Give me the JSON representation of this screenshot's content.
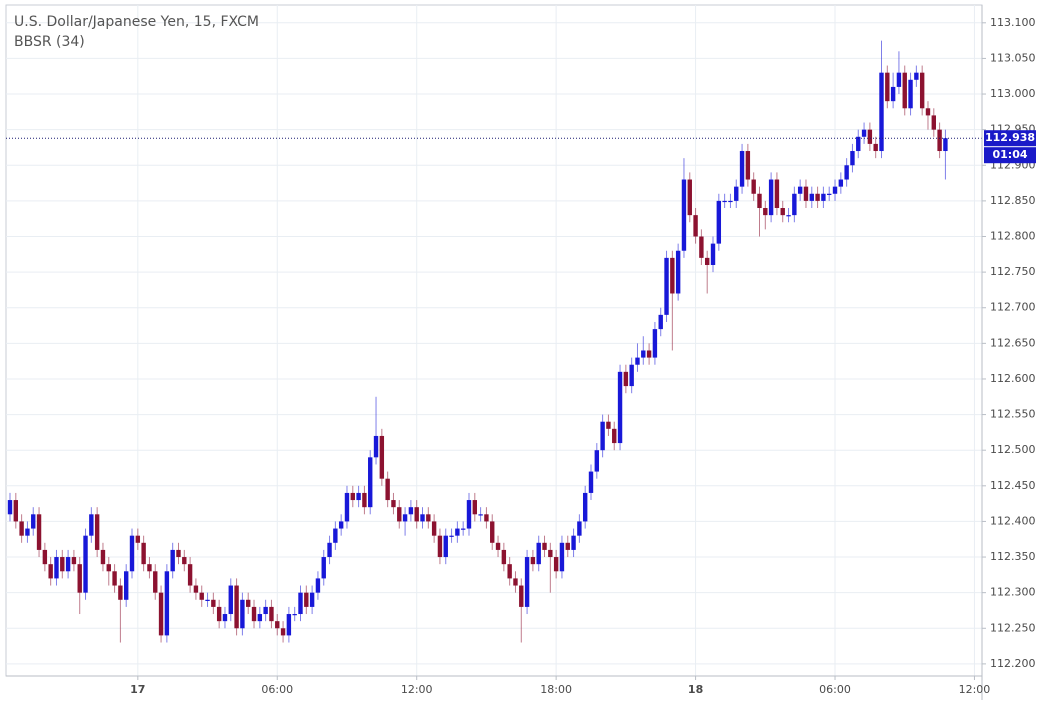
{
  "chart_data": {
    "type": "candlestick",
    "title": "U.S. Dollar/Japanese Yen, 15, FXCM",
    "subtitle": "BBSR (34)",
    "categories": [
      null,
      null,
      null,
      null,
      null,
      null,
      null,
      null,
      null,
      null,
      null,
      null,
      null,
      null,
      null,
      null,
      null,
      null,
      null,
      null,
      null,
      null,
      "17",
      null,
      null,
      null,
      null,
      null,
      null,
      null,
      null,
      null,
      null,
      null,
      null,
      null,
      null,
      null,
      null,
      null,
      null,
      null,
      null,
      null,
      null,
      null,
      "06:00",
      null,
      null,
      null,
      null,
      null,
      null,
      null,
      null,
      null,
      null,
      null,
      null,
      null,
      null,
      null,
      null,
      null,
      null,
      null,
      null,
      null,
      null,
      null,
      "12:00",
      null,
      null,
      null,
      null,
      null,
      null,
      null,
      null,
      null,
      null,
      null,
      null,
      null,
      null,
      null,
      null,
      null,
      null,
      null,
      null,
      null,
      null,
      null,
      "18:00",
      null,
      null,
      null,
      null,
      null,
      null,
      null,
      null,
      null,
      null,
      null,
      null,
      null,
      null,
      null,
      null,
      null,
      null,
      null,
      null,
      null,
      null,
      null,
      "18",
      null,
      null,
      null,
      null,
      null,
      null,
      null,
      null,
      null,
      null,
      null,
      null,
      null,
      null,
      null,
      null,
      null,
      null,
      null,
      null,
      null,
      null,
      null,
      "06:00",
      null,
      null,
      null,
      null,
      null,
      null,
      null,
      null,
      null,
      null,
      null,
      null,
      null,
      null,
      null,
      null,
      null,
      null,
      null,
      null,
      null,
      null,
      null,
      "12:00"
    ],
    "open": [
      112.41,
      112.43,
      112.4,
      112.38,
      112.39,
      112.41,
      112.36,
      112.34,
      112.32,
      112.35,
      112.33,
      112.35,
      112.34,
      112.3,
      112.38,
      112.41,
      112.36,
      112.34,
      112.33,
      112.31,
      112.29,
      112.33,
      112.38,
      112.37,
      112.34,
      112.33,
      112.3,
      112.24,
      112.33,
      112.36,
      112.35,
      112.34,
      112.31,
      112.3,
      112.29,
      112.29,
      112.28,
      112.26,
      112.27,
      112.31,
      112.25,
      112.29,
      112.28,
      112.26,
      112.27,
      112.28,
      112.26,
      112.25,
      112.24,
      112.27,
      112.27,
      112.3,
      112.28,
      112.3,
      112.32,
      112.35,
      112.37,
      112.39,
      112.4,
      112.44,
      112.43,
      112.44,
      112.42,
      112.49,
      112.52,
      112.46,
      112.43,
      112.42,
      112.4,
      112.41,
      112.42,
      112.4,
      112.41,
      112.4,
      112.38,
      112.35,
      112.38,
      112.38,
      112.39,
      112.39,
      112.43,
      112.41,
      112.41,
      112.4,
      112.37,
      112.36,
      112.34,
      112.32,
      112.31,
      112.28,
      112.35,
      112.34,
      112.37,
      112.36,
      112.35,
      112.33,
      112.37,
      112.36,
      112.38,
      112.4,
      112.44,
      112.47,
      112.5,
      112.54,
      112.53,
      112.51,
      112.61,
      112.59,
      112.62,
      112.63,
      112.64,
      112.63,
      112.67,
      112.69,
      112.77,
      112.72,
      112.78,
      112.88,
      112.83,
      112.8,
      112.77,
      112.76,
      112.79,
      112.85,
      112.85,
      112.85,
      112.87,
      112.92,
      112.88,
      112.86,
      112.84,
      112.83,
      112.88,
      112.84,
      112.83,
      112.83,
      112.86,
      112.87,
      112.85,
      112.86,
      112.85,
      112.86,
      112.86,
      112.87,
      112.88,
      112.9,
      112.92,
      112.94,
      112.95,
      112.93,
      112.92,
      113.03,
      112.99,
      113.01,
      113.03,
      112.98,
      113.02,
      113.03,
      112.98,
      112.97,
      112.95,
      112.92,
      null,
      null,
      null,
      null,
      null
    ],
    "high": [
      112.44,
      112.44,
      112.41,
      112.4,
      112.42,
      112.42,
      112.37,
      112.35,
      112.36,
      112.36,
      112.36,
      112.36,
      112.35,
      112.39,
      112.42,
      112.42,
      112.37,
      112.35,
      112.34,
      112.32,
      112.34,
      112.39,
      112.39,
      112.38,
      112.35,
      112.34,
      112.31,
      112.34,
      112.37,
      112.37,
      112.36,
      112.35,
      112.32,
      112.31,
      112.3,
      112.3,
      112.29,
      112.28,
      112.32,
      112.32,
      112.3,
      112.3,
      112.29,
      112.28,
      112.29,
      112.29,
      112.27,
      112.26,
      112.28,
      112.28,
      112.31,
      112.31,
      112.31,
      112.33,
      112.36,
      112.38,
      112.4,
      112.41,
      112.45,
      112.45,
      112.45,
      112.45,
      112.5,
      112.575,
      112.53,
      112.47,
      112.44,
      112.43,
      112.42,
      112.43,
      112.43,
      112.42,
      112.42,
      112.41,
      112.39,
      112.39,
      112.39,
      112.4,
      112.4,
      112.44,
      112.44,
      112.42,
      112.42,
      112.41,
      112.38,
      112.37,
      112.35,
      112.33,
      112.32,
      112.36,
      112.36,
      112.38,
      112.38,
      112.37,
      112.36,
      112.38,
      112.38,
      112.39,
      112.41,
      112.45,
      112.48,
      112.51,
      112.55,
      112.55,
      112.54,
      112.62,
      112.62,
      112.63,
      112.65,
      112.66,
      112.65,
      112.68,
      112.7,
      112.78,
      112.78,
      112.79,
      112.91,
      112.89,
      112.84,
      112.81,
      112.78,
      112.8,
      112.86,
      112.86,
      112.86,
      112.88,
      112.93,
      112.93,
      112.89,
      112.87,
      112.85,
      112.89,
      112.89,
      112.85,
      112.84,
      112.87,
      112.88,
      112.88,
      112.87,
      112.87,
      112.87,
      112.87,
      112.88,
      112.89,
      112.91,
      112.93,
      112.95,
      112.96,
      112.96,
      112.94,
      113.075,
      113.04,
      113.03,
      113.06,
      113.04,
      113.03,
      113.04,
      113.04,
      112.99,
      112.98,
      112.96,
      112.95,
      null,
      null,
      null,
      null,
      null
    ],
    "low": [
      112.4,
      112.39,
      112.37,
      112.37,
      112.38,
      112.35,
      112.33,
      112.31,
      112.31,
      112.32,
      112.32,
      112.33,
      112.27,
      112.29,
      112.37,
      112.35,
      112.33,
      112.31,
      112.3,
      112.23,
      112.28,
      112.32,
      112.36,
      112.33,
      112.32,
      112.29,
      112.23,
      112.23,
      112.32,
      112.34,
      112.33,
      112.3,
      112.29,
      112.28,
      112.28,
      112.27,
      112.25,
      112.25,
      112.26,
      112.24,
      112.24,
      112.27,
      112.25,
      112.25,
      112.26,
      112.25,
      112.24,
      112.23,
      112.23,
      112.26,
      112.26,
      112.27,
      112.27,
      112.29,
      112.31,
      112.34,
      112.36,
      112.38,
      112.39,
      112.42,
      112.42,
      112.41,
      112.41,
      112.48,
      112.45,
      112.42,
      112.41,
      112.39,
      112.38,
      112.4,
      112.39,
      112.39,
      112.39,
      112.37,
      112.34,
      112.34,
      112.37,
      112.37,
      112.38,
      112.38,
      112.4,
      112.4,
      112.39,
      112.36,
      112.35,
      112.33,
      112.31,
      112.3,
      112.23,
      112.27,
      112.33,
      112.33,
      112.35,
      112.3,
      112.32,
      112.32,
      112.35,
      112.35,
      112.37,
      112.39,
      112.43,
      112.46,
      112.49,
      112.52,
      112.5,
      112.5,
      112.58,
      112.58,
      112.61,
      112.62,
      112.62,
      112.62,
      112.66,
      112.68,
      112.64,
      112.71,
      112.77,
      112.82,
      112.79,
      112.76,
      112.72,
      112.75,
      112.78,
      112.84,
      112.84,
      112.84,
      112.86,
      112.87,
      112.85,
      112.8,
      112.81,
      112.82,
      112.83,
      112.82,
      112.82,
      112.82,
      112.85,
      112.84,
      112.84,
      112.84,
      112.84,
      112.85,
      112.85,
      112.86,
      112.87,
      112.89,
      112.91,
      112.93,
      112.92,
      112.91,
      112.91,
      112.98,
      112.98,
      113.0,
      112.97,
      112.97,
      113.01,
      112.97,
      112.95,
      112.94,
      112.91,
      112.88,
      null,
      null,
      null,
      null,
      null
    ],
    "close": [
      112.43,
      112.4,
      112.38,
      112.39,
      112.41,
      112.36,
      112.34,
      112.32,
      112.35,
      112.33,
      112.35,
      112.34,
      112.3,
      112.38,
      112.41,
      112.36,
      112.34,
      112.33,
      112.31,
      112.29,
      112.33,
      112.38,
      112.37,
      112.34,
      112.33,
      112.3,
      112.24,
      112.33,
      112.36,
      112.35,
      112.34,
      112.31,
      112.3,
      112.29,
      112.29,
      112.28,
      112.26,
      112.27,
      112.31,
      112.25,
      112.29,
      112.28,
      112.26,
      112.27,
      112.28,
      112.26,
      112.25,
      112.24,
      112.27,
      112.27,
      112.3,
      112.28,
      112.3,
      112.32,
      112.35,
      112.37,
      112.39,
      112.4,
      112.44,
      112.43,
      112.44,
      112.42,
      112.49,
      112.52,
      112.46,
      112.43,
      112.42,
      112.4,
      112.41,
      112.42,
      112.4,
      112.41,
      112.4,
      112.38,
      112.35,
      112.38,
      112.38,
      112.39,
      112.39,
      112.43,
      112.41,
      112.41,
      112.4,
      112.37,
      112.36,
      112.34,
      112.32,
      112.31,
      112.28,
      112.35,
      112.34,
      112.37,
      112.36,
      112.35,
      112.33,
      112.37,
      112.36,
      112.38,
      112.4,
      112.44,
      112.47,
      112.5,
      112.54,
      112.53,
      112.51,
      112.61,
      112.59,
      112.62,
      112.63,
      112.64,
      112.63,
      112.67,
      112.69,
      112.77,
      112.72,
      112.78,
      112.88,
      112.83,
      112.8,
      112.77,
      112.76,
      112.79,
      112.85,
      112.85,
      112.85,
      112.87,
      112.92,
      112.88,
      112.86,
      112.84,
      112.83,
      112.88,
      112.84,
      112.83,
      112.83,
      112.86,
      112.87,
      112.85,
      112.86,
      112.85,
      112.86,
      112.86,
      112.87,
      112.88,
      112.9,
      112.92,
      112.94,
      112.95,
      112.93,
      112.92,
      113.03,
      112.99,
      113.01,
      113.03,
      112.98,
      113.02,
      113.03,
      112.98,
      112.97,
      112.95,
      112.92,
      112.938,
      null,
      null,
      null,
      null,
      null
    ],
    "up_color": "#1818d8",
    "down_color": "#8c1230",
    "last_price": 112.938,
    "countdown": "01:04",
    "last_price_color": "#1a1ac8",
    "ylim": [
      112.183,
      113.125
    ],
    "yticks": [
      {
        "value": 112.2,
        "label": "112.200"
      },
      {
        "value": 112.25,
        "label": "112.250"
      },
      {
        "value": 112.3,
        "label": "112.300"
      },
      {
        "value": 112.35,
        "label": "112.350"
      },
      {
        "value": 112.4,
        "label": "112.400"
      },
      {
        "value": 112.45,
        "label": "112.450"
      },
      {
        "value": 112.5,
        "label": "112.500"
      },
      {
        "value": 112.55,
        "label": "112.550"
      },
      {
        "value": 112.6,
        "label": "112.600"
      },
      {
        "value": 112.65,
        "label": "112.650"
      },
      {
        "value": 112.7,
        "label": "112.700"
      },
      {
        "value": 112.75,
        "label": "112.750"
      },
      {
        "value": 112.8,
        "label": "112.800"
      },
      {
        "value": 112.85,
        "label": "112.850"
      },
      {
        "value": 112.9,
        "label": "112.900"
      },
      {
        "value": 112.95,
        "label": "112.950"
      },
      {
        "value": 113.0,
        "label": "113.000"
      },
      {
        "value": 113.05,
        "label": "113.050"
      },
      {
        "value": 113.1,
        "label": "113.100"
      }
    ],
    "grid": true
  }
}
